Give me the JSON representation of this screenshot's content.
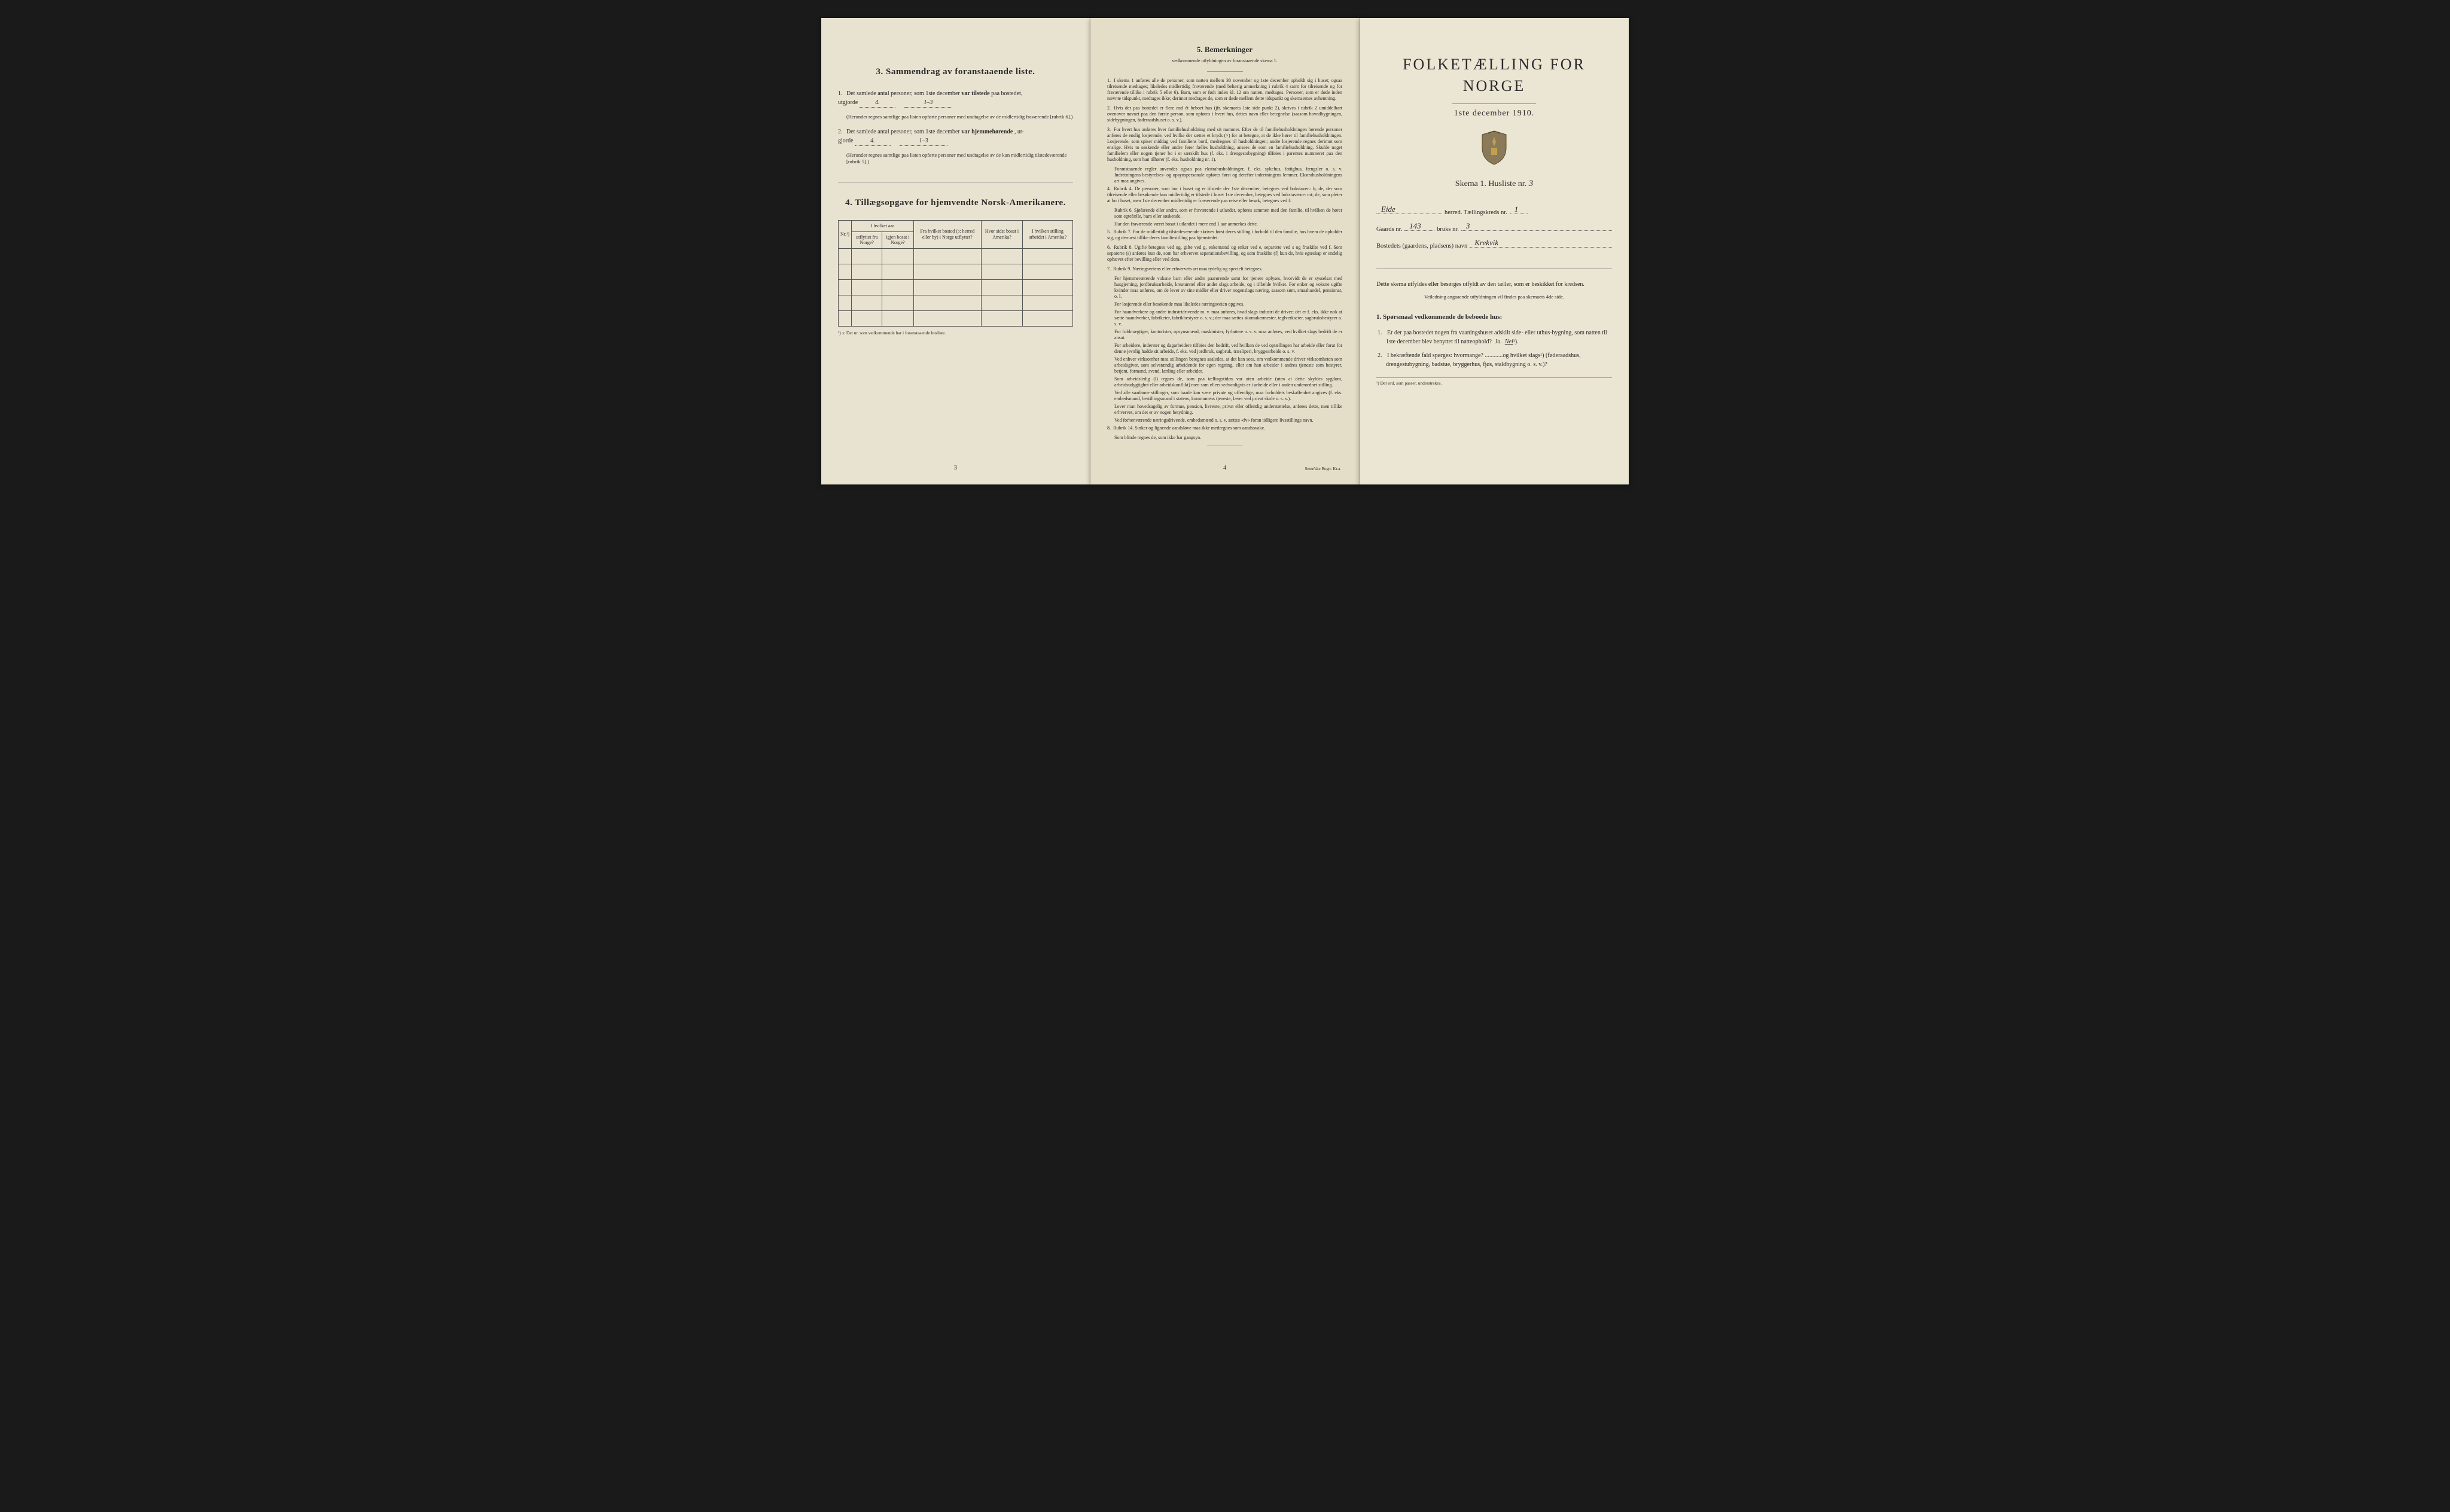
{
  "page1": {
    "section3_title": "3.   Sammendrag av foranstaaende liste.",
    "item1_text_a": "Det samlede antal personer, som 1ste december",
    "item1_text_b": "var tilstede",
    "item1_text_c": "paa bostedet,",
    "item1_text_d": "utgjorde",
    "item1_fill1": "4.",
    "item1_fill2": "1–3",
    "item1_paren": "(Herunder regnes samtlige paa listen opførte personer med undtagelse av de midlertidig fraværende [rubrik 6].)",
    "item2_text_a": "Det samlede antal personer, som 1ste december",
    "item2_text_b": "var hjemmehørende",
    "item2_text_c": ", ut-",
    "item2_text_d": "gjorde",
    "item2_fill1": "4.",
    "item2_fill2": "1–3",
    "item2_paren": "(Herunder regnes samtlige paa listen opførte personer med undtagelse av de kun midlertidig tilstedeværende [rubrik 5].)",
    "section4_title": "4.   Tillægsopgave for hjemvendte Norsk-Amerikanere.",
    "table": {
      "col1": "Nr.¹)",
      "col2a": "I hvilket aar",
      "col2b": "utflyttet fra Norge?",
      "col2c": "igjen bosat i Norge?",
      "col3": "Fra hvilket bosted (ɔ: herred eller by) i Norge utflyttet?",
      "col4": "Hvor sidst bosat i Amerika?",
      "col5": "I hvilken stilling arbeidet i Amerika?"
    },
    "table_footnote": "¹) ɔ: Det nr. som vedkommende har i foranstaaende husliste.",
    "page_num": "3"
  },
  "page2": {
    "title": "5.   Bemerkninger",
    "subtitle": "vedkommende utfyldningen av foranstaaende skema 1.",
    "remarks": [
      {
        "n": "1.",
        "t": "I skema 1 anføres alle de personer, som natten mellem 30 november og 1ste december opholdt sig i huset; ogsaa tilreisende medtages; likeledes midlertidig fraværende (med behørig anmerkning i rubrik 4 samt for tilreisende og for fraværende tillike i rubrik 5 eller 6). Barn, som er født inden kl. 12 om natten, medtages. Personer, som er døde inden nævnte tidspunkt, medtages ikke; derimot medtages de, som er døde mellem dette tidspunkt og skemaernes avhentning."
      },
      {
        "n": "2.",
        "t": "Hvis der paa bostedet er flere end ét beboet hus (jfr. skemaets 1ste side punkt 2), skrives i rubrik 2 umiddelbart ovenover navnet paa den første person, som opføres i hvert hus, dettes navn eller betegnelse (saasom hovedbygningen, sidebygningen, føderaadshuset o. s. v.)."
      },
      {
        "n": "3.",
        "t": "For hvert hus anføres hver familiehusholdning med sit nummer. Efter de til familiehusholdningen hørende personer anføres de enslig losjerende, ved hvilke der sættes et kryds (×) for at betegne, at de ikke hører til familiehusholdningen. Losjerende, som spiser middag ved familiens bord, medregnes til husholdningen; andre losjerende regnes derimot som enslige. Hvis to søskende eller andre fører fælles husholdning, ansees de som en familiehusholdning. Skulde noget familielem eller nogen tjener bo i et særskilt hus (f. eks. i drengestubygning) tilføies i parentes nummeret paa den husholdning, som han tilhører (f. eks. husholdning nr. 1)."
      },
      {
        "n": "",
        "t": "Foranstaaende regler anvendes ogsaa paa ekstrahusholdninger, f. eks. sykehus, fattighus, fængsler o. s. v. Indretningens bestyrelses- og opsynspersonale opføres først og derefter indretningens lemmer. Ekstrahusholdningens art maa angives."
      },
      {
        "n": "4.",
        "t": "Rubrik 4. De personer, som bor i huset og er tilstede der 1ste december, betegnes ved bokstaven: b; de, der som tilreisende eller besøkende kun midlertidig er tilstede i huset 1ste december, betegnes ved bokstaverne: mt; de, som pleier at bo i huset, men 1ste december midlertidig er fraværende paa reise eller besøk, betegnes ved f."
      },
      {
        "n": "",
        "t": "Rubrik 6. Sjøfarende eller andre, som er fraværende i utlandet, opføres sammen med den familie, til hvilken de hører som egtefælle, barn eller søskende."
      },
      {
        "n": "",
        "t": "Har den fraværende været bosat i utlandet i mere end 1 aar anmerkes dette."
      },
      {
        "n": "5.",
        "t": "Rubrik 7. For de midlertidig tilstedeværende skrives først deres stilling i forhold til den familie, hos hvem de opholder sig, og dernæst tillike deres familiestilling paa hjemstedet."
      },
      {
        "n": "6.",
        "t": "Rubrik 8. Ugifte betegnes ved ug, gifte ved g, enkemænd og enker ved e, separerte ved s og fraskilte ved f. Som separerte (s) anføres kun de, som har erhvervet separationsbevilling, og som fraskilte (f) kun de, hvis egteskap er endelig ophævet efter bevilling eller ved dom."
      },
      {
        "n": "7.",
        "t": "Rubrik 9. Næringsveiens eller erhvervets art maa tydelig og specielt betegnes."
      },
      {
        "n": "",
        "t": "For hjemmeværende voksne barn eller andre paarørende samt for tjenere oplyses, hvorvidt de er sysselsat med husgjerning, jordbruksarbeide, kreaturstel eller andet slags arbeide, og i tilfælde hvilket. For enker og voksne ugifte kvinder maa anføres, om de lever av sine midler eller driver nogenslags næring, saasom søm, smaahandel, pensionat, o. l."
      },
      {
        "n": "",
        "t": "For losjerende eller besøkende maa likeledes næringsveien opgives."
      },
      {
        "n": "",
        "t": "For haandverkere og andre industridrivende m. v. maa anføres, hvad slags industri de driver; det er f. eks. ikke nok at sætte haandverker, fabrikeier, fabrikbestyrer o. s. v.; der maa sættes skomakermester, teglverkseier, sagbruksbestyrer o. s. v."
      },
      {
        "n": "",
        "t": "For fuldmægtiger, kontorister, opsynsmænd, maskinister, fyrbøtere o. s. v. maa anføres, ved hvilket slags bedrift de er ansat."
      },
      {
        "n": "",
        "t": "For arbeidere, inderster og dagarbeidere tilføies den bedrift, ved hvilken de ved optællingen har arbeide eller forut for denne jevnlig hadde sit arbeide, f. eks. ved jordbruk, sagbruk, træsliperi, bryggearbeide o. s. v."
      },
      {
        "n": "",
        "t": "Ved enhver virksomhet maa stillingen betegnes saaledes, at det kan sees, om vedkommende driver virksomheten som arbeidsgiver, som selvstændig arbeidende for egen regning, eller om han arbeider i andres tjeneste som bestyrer, betjent, formand, svend, lærling eller arbeider."
      },
      {
        "n": "",
        "t": "Som arbeidsledig (l) regnes de, som paa tællingstiden var uten arbeide (uten at dette skyldes sygdom, arbeidsudygtighet eller arbeidskonflikt) men som ellers sedvanligvis er i arbeide eller i anden underordnet stilling."
      },
      {
        "n": "",
        "t": "Ved alle saadanne stillinger, som baade kan være private og offentlige, maa forholdets beskaffenhet angives (f. eks. embedsmand, bestillingsmand i statens, kommunens tjeneste, lærer ved privat skole o. s. v.)."
      },
      {
        "n": "",
        "t": "Lever man hovedsagelig av formue, pension, livrente, privat eller offentlig understøttelse, anføres dette, men tillike erhvervet, om det er av nogen betydning."
      },
      {
        "n": "",
        "t": "Ved forhenværende næringsdrivende, embedsmænd o. s. v. sættes «fv» foran tidligere livsstillings navn."
      },
      {
        "n": "8.",
        "t": "Rubrik 14. Sinker og lignende aandsløve maa ikke medregnes som aandssvake."
      },
      {
        "n": "",
        "t": "Som blinde regnes de, som ikke har gangsyn."
      }
    ],
    "page_num": "4",
    "printer": "Steen'ske Bogtr. Kr.a."
  },
  "page3": {
    "main_title": "FOLKETÆLLING FOR NORGE",
    "main_date": "1ste december 1910.",
    "skema_label": "Skema 1.   Husliste nr.",
    "skema_num": "3",
    "line1_label_a": "",
    "line1_hw": "Eide",
    "line1_label_b": "herred.  Tællingskreds nr.",
    "line1_hw2": "1",
    "line2_label_a": "Gaards nr.",
    "line2_hw1": "143",
    "line2_label_b": "bruks nr.",
    "line2_hw2": "3",
    "line3_label": "Bostedets (gaardens, pladsens) navn",
    "line3_hw": "Krekvik",
    "instr1": "Dette skema utfyldes eller besørges utfyldt av den tæller, som er beskikket for kredsen.",
    "instr2": "Veiledning angaaende utfyldningen vil findes paa skemaets 4de side.",
    "q_heading": "1. Spørsmaal vedkommende de beboede hus:",
    "q1_num": "1.",
    "q1_text_a": "Er der paa bostedet nogen fra vaaningshuset adskilt side- eller uthus-bygning, som natten til 1ste december blev benyttet til natteophold?",
    "q1_ja": "Ja.",
    "q1_nei": "Nei",
    "q1_sup": "¹).",
    "q2_num": "2.",
    "q2_text": "I bekræftende fald spørges: hvormange? ............og hvilket slags¹) (føderaadshus, drengestubygning, badstue, bryggerhus, fjøs, staldbygning o. s. v.)?",
    "footnote": "¹) Det ord, som passer, understrekes."
  }
}
